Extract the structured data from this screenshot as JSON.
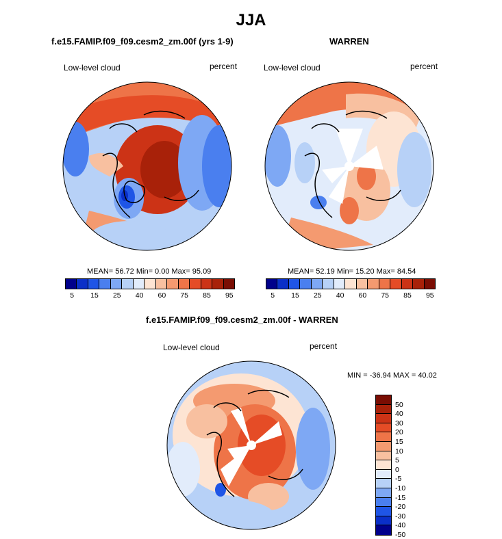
{
  "title": "JJA",
  "panels": [
    {
      "case": "f.e15.FAMIP.f09_f09.cesm2_zm.00f (yrs 1-9)",
      "left_label": "Low-level cloud",
      "right_label": "percent",
      "stats": "MEAN=  56.72  Min=   0.00  Max=  95.09"
    },
    {
      "case": "WARREN",
      "left_label": "Low-level cloud",
      "right_label": "percent",
      "stats": "MEAN=  52.19  Min=  15.20  Max=  84.54"
    }
  ],
  "diff": {
    "case": "f.e15.FAMIP.f09_f09.cesm2_zm.00f - WARREN",
    "left_label": "Low-level cloud",
    "right_label": "percent",
    "minmax": "MIN = -36.94 MAX =  40.02"
  },
  "colorbar": {
    "colors": [
      "#00008b",
      "#0a2fc8",
      "#1f55e6",
      "#4a7fef",
      "#7ea8f4",
      "#b7d1f7",
      "#e2ecfb",
      "#fde4d3",
      "#f8c0a0",
      "#f49a70",
      "#ee7448",
      "#e54c26",
      "#cc3316",
      "#a82109",
      "#7a0d03"
    ],
    "ticks": [
      "5",
      "15",
      "25",
      "40",
      "60",
      "75",
      "85",
      "95"
    ]
  },
  "diff_colorbar": {
    "colors": [
      "#7a0d03",
      "#a82109",
      "#cc3316",
      "#e54c26",
      "#ee7448",
      "#f49a70",
      "#f8c0a0",
      "#fde4d3",
      "#e2ecfb",
      "#b7d1f7",
      "#7ea8f4",
      "#4a7fef",
      "#1f55e6",
      "#0a2fc8",
      "#00008b"
    ],
    "ticks": [
      "50",
      "40",
      "30",
      "20",
      "15",
      "10",
      "5",
      "0",
      "-5",
      "-10",
      "-15",
      "-20",
      "-30",
      "-40",
      "-50"
    ]
  }
}
